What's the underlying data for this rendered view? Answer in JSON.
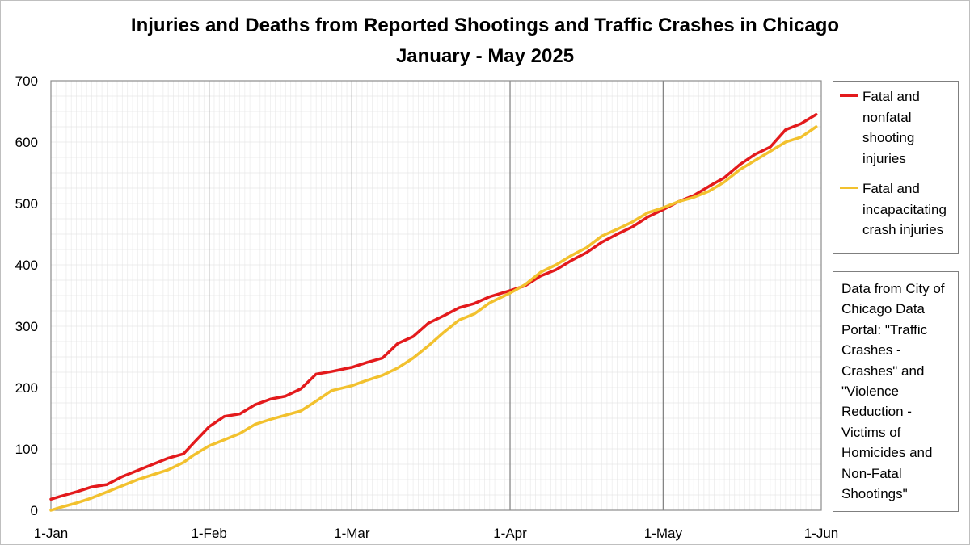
{
  "title_line1": "Injuries and Deaths from Reported Shootings and Traffic Crashes in Chicago",
  "title_line2": "January - May 2025",
  "legend": [
    {
      "label": "Fatal and nonfatal shooting injuries",
      "color": "#e31a1c"
    },
    {
      "label": "Fatal and incapacitating crash injuries",
      "color": "#f2c12e"
    }
  ],
  "source_note": "Data from City of Chicago Data Portal: \"Traffic Crashes - Crashes\" and \"Violence Reduction - Victims of Homicides and Non-Fatal Shootings\"",
  "chart_data": {
    "type": "line",
    "x_type": "date",
    "xlim": [
      "2025-01-01",
      "2025-06-01"
    ],
    "ylim": [
      0,
      700
    ],
    "y_ticks": [
      0,
      100,
      200,
      300,
      400,
      500,
      600,
      700
    ],
    "x_ticks": [
      {
        "date": "2025-01-01",
        "label": "1-Jan"
      },
      {
        "date": "2025-02-01",
        "label": "1-Feb"
      },
      {
        "date": "2025-03-01",
        "label": "1-Mar"
      },
      {
        "date": "2025-04-01",
        "label": "1-Apr"
      },
      {
        "date": "2025-05-01",
        "label": "1-May"
      },
      {
        "date": "2025-06-01",
        "label": "1-Jun"
      }
    ],
    "grid": "vertical major lines at month starts, minor vertical gridlines daily, horizontal gridlines",
    "legend_position": "right",
    "series": [
      {
        "name": "Fatal and nonfatal shooting injuries",
        "color": "#e31a1c",
        "points": [
          [
            "2025-01-01",
            18
          ],
          [
            "2025-01-03",
            23
          ],
          [
            "2025-01-06",
            30
          ],
          [
            "2025-01-09",
            38
          ],
          [
            "2025-01-12",
            42
          ],
          [
            "2025-01-15",
            55
          ],
          [
            "2025-01-18",
            65
          ],
          [
            "2025-01-21",
            75
          ],
          [
            "2025-01-24",
            85
          ],
          [
            "2025-01-27",
            92
          ],
          [
            "2025-01-29",
            110
          ],
          [
            "2025-02-01",
            136
          ],
          [
            "2025-02-04",
            153
          ],
          [
            "2025-02-07",
            157
          ],
          [
            "2025-02-10",
            172
          ],
          [
            "2025-02-13",
            181
          ],
          [
            "2025-02-16",
            186
          ],
          [
            "2025-02-19",
            198
          ],
          [
            "2025-02-22",
            222
          ],
          [
            "2025-02-25",
            226
          ],
          [
            "2025-03-01",
            233
          ],
          [
            "2025-03-04",
            241
          ],
          [
            "2025-03-07",
            248
          ],
          [
            "2025-03-10",
            272
          ],
          [
            "2025-03-13",
            283
          ],
          [
            "2025-03-16",
            305
          ],
          [
            "2025-03-19",
            317
          ],
          [
            "2025-03-22",
            330
          ],
          [
            "2025-03-25",
            337
          ],
          [
            "2025-03-28",
            348
          ],
          [
            "2025-04-01",
            358
          ],
          [
            "2025-04-04",
            366
          ],
          [
            "2025-04-07",
            382
          ],
          [
            "2025-04-10",
            392
          ],
          [
            "2025-04-13",
            407
          ],
          [
            "2025-04-16",
            420
          ],
          [
            "2025-04-19",
            437
          ],
          [
            "2025-04-22",
            450
          ],
          [
            "2025-04-25",
            462
          ],
          [
            "2025-04-28",
            478
          ],
          [
            "2025-05-01",
            490
          ],
          [
            "2025-05-04",
            503
          ],
          [
            "2025-05-07",
            513
          ],
          [
            "2025-05-10",
            528
          ],
          [
            "2025-05-13",
            542
          ],
          [
            "2025-05-16",
            563
          ],
          [
            "2025-05-19",
            580
          ],
          [
            "2025-05-22",
            592
          ],
          [
            "2025-05-25",
            620
          ],
          [
            "2025-05-28",
            630
          ],
          [
            "2025-05-31",
            645
          ]
        ]
      },
      {
        "name": "Fatal and incapacitating crash injuries",
        "color": "#f2c12e",
        "points": [
          [
            "2025-01-01",
            0
          ],
          [
            "2025-01-03",
            5
          ],
          [
            "2025-01-06",
            12
          ],
          [
            "2025-01-09",
            20
          ],
          [
            "2025-01-12",
            30
          ],
          [
            "2025-01-15",
            40
          ],
          [
            "2025-01-18",
            50
          ],
          [
            "2025-01-21",
            58
          ],
          [
            "2025-01-24",
            66
          ],
          [
            "2025-01-27",
            78
          ],
          [
            "2025-01-29",
            90
          ],
          [
            "2025-02-01",
            105
          ],
          [
            "2025-02-04",
            115
          ],
          [
            "2025-02-07",
            125
          ],
          [
            "2025-02-10",
            140
          ],
          [
            "2025-02-13",
            148
          ],
          [
            "2025-02-16",
            155
          ],
          [
            "2025-02-19",
            162
          ],
          [
            "2025-02-22",
            178
          ],
          [
            "2025-02-25",
            195
          ],
          [
            "2025-03-01",
            203
          ],
          [
            "2025-03-04",
            212
          ],
          [
            "2025-03-07",
            220
          ],
          [
            "2025-03-10",
            232
          ],
          [
            "2025-03-13",
            248
          ],
          [
            "2025-03-16",
            268
          ],
          [
            "2025-03-19",
            290
          ],
          [
            "2025-03-22",
            310
          ],
          [
            "2025-03-25",
            320
          ],
          [
            "2025-03-28",
            338
          ],
          [
            "2025-04-01",
            354
          ],
          [
            "2025-04-04",
            368
          ],
          [
            "2025-04-07",
            388
          ],
          [
            "2025-04-10",
            400
          ],
          [
            "2025-04-13",
            415
          ],
          [
            "2025-04-16",
            428
          ],
          [
            "2025-04-19",
            447
          ],
          [
            "2025-04-22",
            458
          ],
          [
            "2025-04-25",
            470
          ],
          [
            "2025-04-28",
            485
          ],
          [
            "2025-05-01",
            493
          ],
          [
            "2025-05-04",
            503
          ],
          [
            "2025-05-07",
            510
          ],
          [
            "2025-05-10",
            520
          ],
          [
            "2025-05-13",
            535
          ],
          [
            "2025-05-16",
            555
          ],
          [
            "2025-05-19",
            570
          ],
          [
            "2025-05-22",
            585
          ],
          [
            "2025-05-25",
            600
          ],
          [
            "2025-05-28",
            608
          ],
          [
            "2025-05-31",
            625
          ]
        ]
      }
    ]
  }
}
